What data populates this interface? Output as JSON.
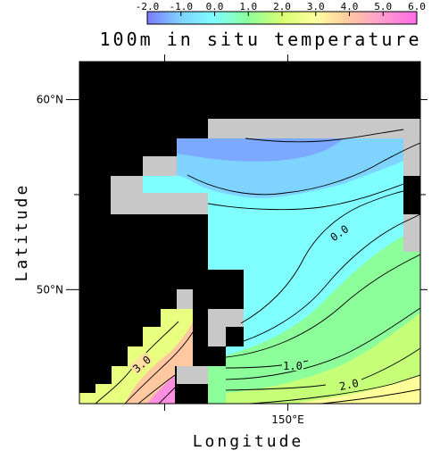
{
  "chart_data": {
    "type": "heatmap",
    "title": "100m in situ temperature",
    "xlabel": "Longitude",
    "ylabel": "Latitude",
    "xlim": [
      128,
      164
    ],
    "ylim": [
      44,
      62
    ],
    "x_ticks": [
      {
        "value": 137,
        "label": ""
      },
      {
        "value": 150,
        "label": "150°E"
      }
    ],
    "y_ticks": [
      {
        "value": 60,
        "label": "60°N"
      },
      {
        "value": 50,
        "label": "50°N"
      }
    ],
    "colorbar": {
      "ticks": [
        "-2.0",
        "-1.0",
        "0.0",
        "1.0",
        "2.0",
        "3.0",
        "4.0",
        "5.0",
        "6.0"
      ],
      "colors": [
        "#7b7bff",
        "#7ed4ff",
        "#7fffff",
        "#8cff9a",
        "#d8ff72",
        "#ffffa0",
        "#ffc8a0",
        "#ff9ad0",
        "#ff6ce6"
      ]
    },
    "contour_labels": [
      "0.0",
      "1.0",
      "2.0",
      "3.0"
    ],
    "land_color": "#000000",
    "missing_color": "#c8c8c8"
  }
}
